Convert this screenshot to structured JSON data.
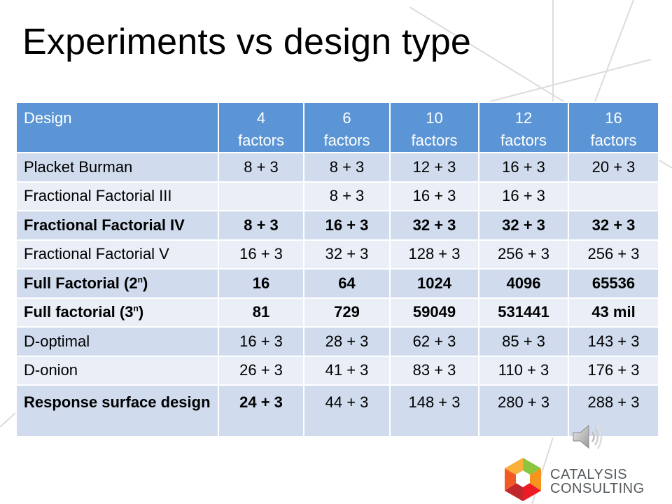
{
  "slide": {
    "title": "Experiments vs design type"
  },
  "table": {
    "header": {
      "design_label": "Design",
      "factors": [
        {
          "count": "4",
          "unit": "factors"
        },
        {
          "count": "6",
          "unit": "factors"
        },
        {
          "count": "10",
          "unit": "factors"
        },
        {
          "count": "12",
          "unit": "factors"
        },
        {
          "count": "16",
          "unit": "factors"
        }
      ]
    },
    "rows": [
      {
        "label": "Placket Burman",
        "cells": [
          "8 + 3",
          "8 + 3",
          "12 + 3",
          "16 + 3",
          "20 + 3"
        ]
      },
      {
        "label": "Fractional Factorial III",
        "cells": [
          "",
          "8 + 3",
          "16 + 3",
          "16 + 3",
          ""
        ]
      },
      {
        "label": "Fractional Factorial IV",
        "cells": [
          "8 + 3",
          "16 + 3",
          "32 + 3",
          "32 + 3",
          "32 + 3"
        ]
      },
      {
        "label": "Fractional Factorial V",
        "cells": [
          "16 + 3",
          "32 + 3",
          "128 + 3",
          "256 + 3",
          "256 + 3"
        ]
      },
      {
        "label": "Full Factorial (2",
        "label_sup": "n",
        "label_end": ")",
        "cells": [
          "16",
          "64",
          "1024",
          "4096",
          "65536"
        ]
      },
      {
        "label": "Full factorial (3",
        "label_sup": "n",
        "label_end": ")",
        "cells": [
          "81",
          "729",
          "59049",
          "531441",
          "43 mil"
        ]
      },
      {
        "label": "D-optimal",
        "cells": [
          "16 + 3",
          "28 + 3",
          "62 + 3",
          "85 + 3",
          "143 + 3"
        ]
      },
      {
        "label": "D-onion",
        "cells": [
          "26 + 3",
          "41 + 3",
          "83 + 3",
          "110 + 3",
          "176 + 3"
        ]
      },
      {
        "label": "Response surface design",
        "cells": [
          "24 + 3",
          "44 + 3",
          "148 + 3",
          "280 + 3",
          "288 + 3"
        ]
      }
    ]
  },
  "logo": {
    "line1": "CATALYSIS",
    "line2": "CONSULTING"
  },
  "colors": {
    "header_bg": "#5b95d5",
    "row_even": "#d0dcee",
    "row_odd": "#e9eef7",
    "logo_text": "#555a5e"
  },
  "icons": {
    "audio": "speaker-icon",
    "brand": "catalysis-logo-icon"
  }
}
